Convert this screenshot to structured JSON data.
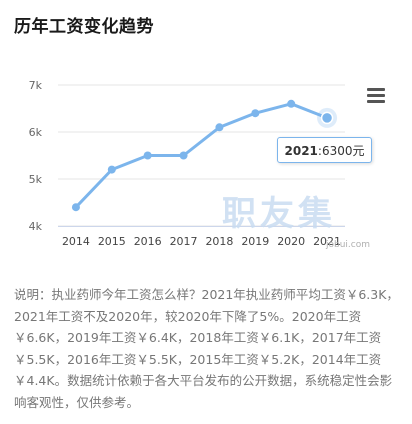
{
  "title": "历年工资变化趋势",
  "chart_data": {
    "type": "line",
    "categories": [
      "2014",
      "2015",
      "2016",
      "2017",
      "2018",
      "2019",
      "2020",
      "2021"
    ],
    "values": [
      4400,
      5200,
      5500,
      5500,
      6100,
      6400,
      6600,
      6300
    ],
    "y_tick_labels": [
      "4k",
      "5k",
      "6k",
      "7k"
    ],
    "ylim": [
      4000,
      7000
    ],
    "grid": true,
    "line_color": "#7cb5ec",
    "tooltip": {
      "label": "2021",
      "value": "6300元"
    }
  },
  "watermark": {
    "text": "职友集",
    "url": "jobui.com"
  },
  "description": "说明：执业药师今年工资怎么样？2021年执业药师平均工资￥6.3K，2021年工资不及2020年，较2020年下降了5%。2020年工资￥6.6K，2019年工资￥6.4K，2018年工资￥6.1K，2017年工资￥5.5K，2016年工资￥5.5K，2015年工资￥5.2K，2014年工资￥4.4K。数据统计依赖于各大平台发布的公开数据，系统稳定性会影响客观性，仅供参考。",
  "icons": {
    "menu": "hamburger-menu-icon"
  }
}
